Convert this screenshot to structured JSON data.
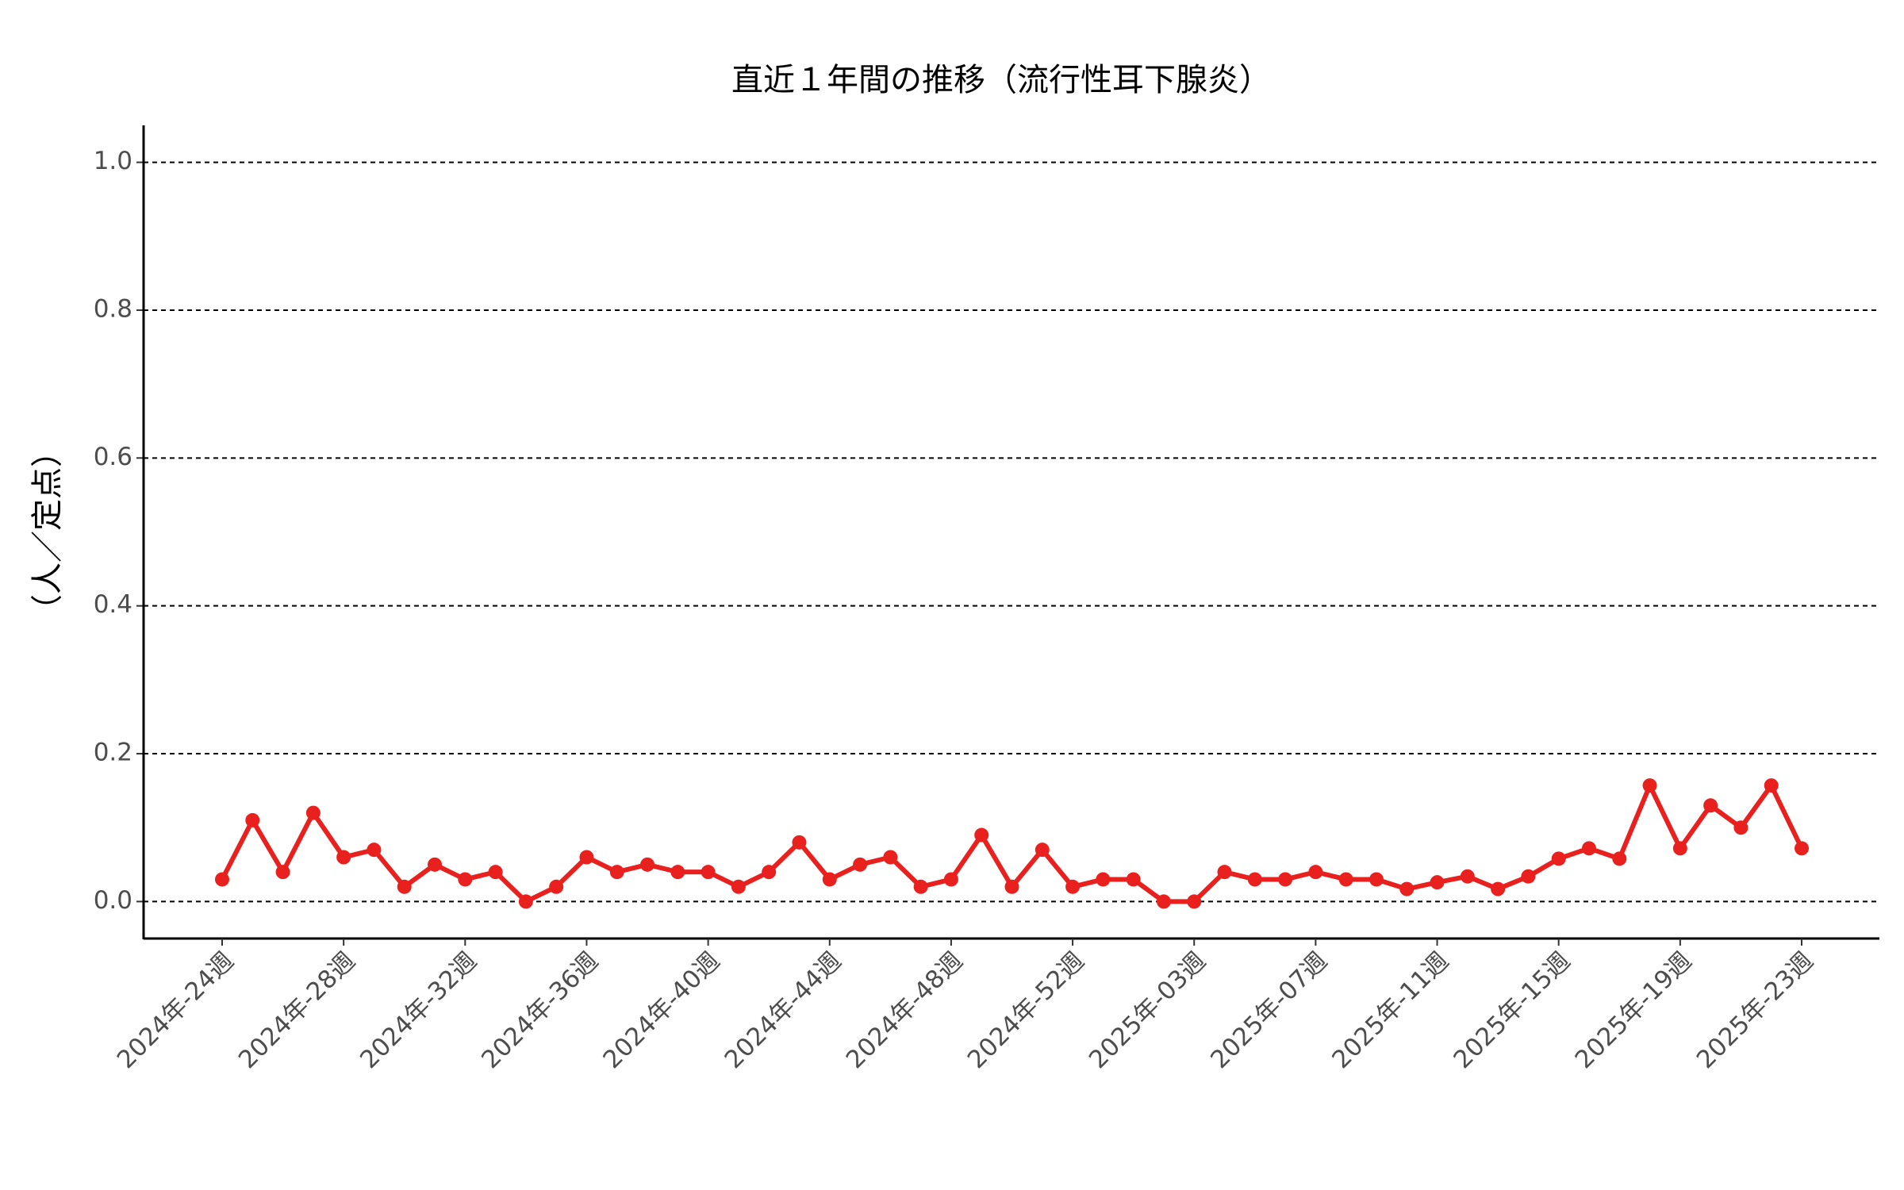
{
  "chart_data": {
    "type": "line",
    "title": "直近１年間の推移（流行性耳下腺炎）",
    "y_label": "（人／定点）",
    "categories": [
      "2024年-24週",
      null,
      null,
      null,
      "2024年-28週",
      null,
      null,
      null,
      "2024年-32週",
      null,
      null,
      null,
      "2024年-36週",
      null,
      null,
      null,
      "2024年-40週",
      null,
      null,
      null,
      "2024年-44週",
      null,
      null,
      null,
      "2024年-48週",
      null,
      null,
      null,
      "2024年-52週",
      null,
      null,
      null,
      "2025年-03週",
      null,
      null,
      null,
      "2025年-07週",
      null,
      null,
      null,
      "2025年-11週",
      null,
      null,
      null,
      "2025年-15週",
      null,
      null,
      null,
      "2025年-19週",
      null,
      null,
      null,
      "2025年-23週"
    ],
    "series": [
      {
        "name": "流行性耳下腺炎",
        "color": "#e8201e",
        "values": [
          0.03,
          0.11,
          0.04,
          0.12,
          0.06,
          0.07,
          0.02,
          0.05,
          0.03,
          0.04,
          0.0,
          0.02,
          0.06,
          0.04,
          0.05,
          0.04,
          0.04,
          0.02,
          0.04,
          0.08,
          0.03,
          0.05,
          0.06,
          0.02,
          0.03,
          0.09,
          0.02,
          0.07,
          0.02,
          0.03,
          0.03,
          0.0,
          0.0,
          0.04,
          0.03,
          0.03,
          0.04,
          0.03,
          0.03,
          0.017,
          0.026,
          0.034,
          0.017,
          0.034,
          0.058,
          0.072,
          0.058,
          0.157,
          0.072,
          0.13,
          0.1,
          0.157,
          0.072
        ]
      }
    ],
    "ylim": [
      -0.05,
      1.05
    ],
    "yticks": [
      {
        "value": 0,
        "label": "0.0"
      },
      {
        "value": 0.2,
        "label": "0.2"
      },
      {
        "value": 0.4,
        "label": "0.4"
      },
      {
        "value": 0.6,
        "label": "0.6"
      },
      {
        "value": 0.8,
        "label": "0.8"
      },
      {
        "value": 1,
        "label": "1.0"
      }
    ],
    "grid": true
  }
}
